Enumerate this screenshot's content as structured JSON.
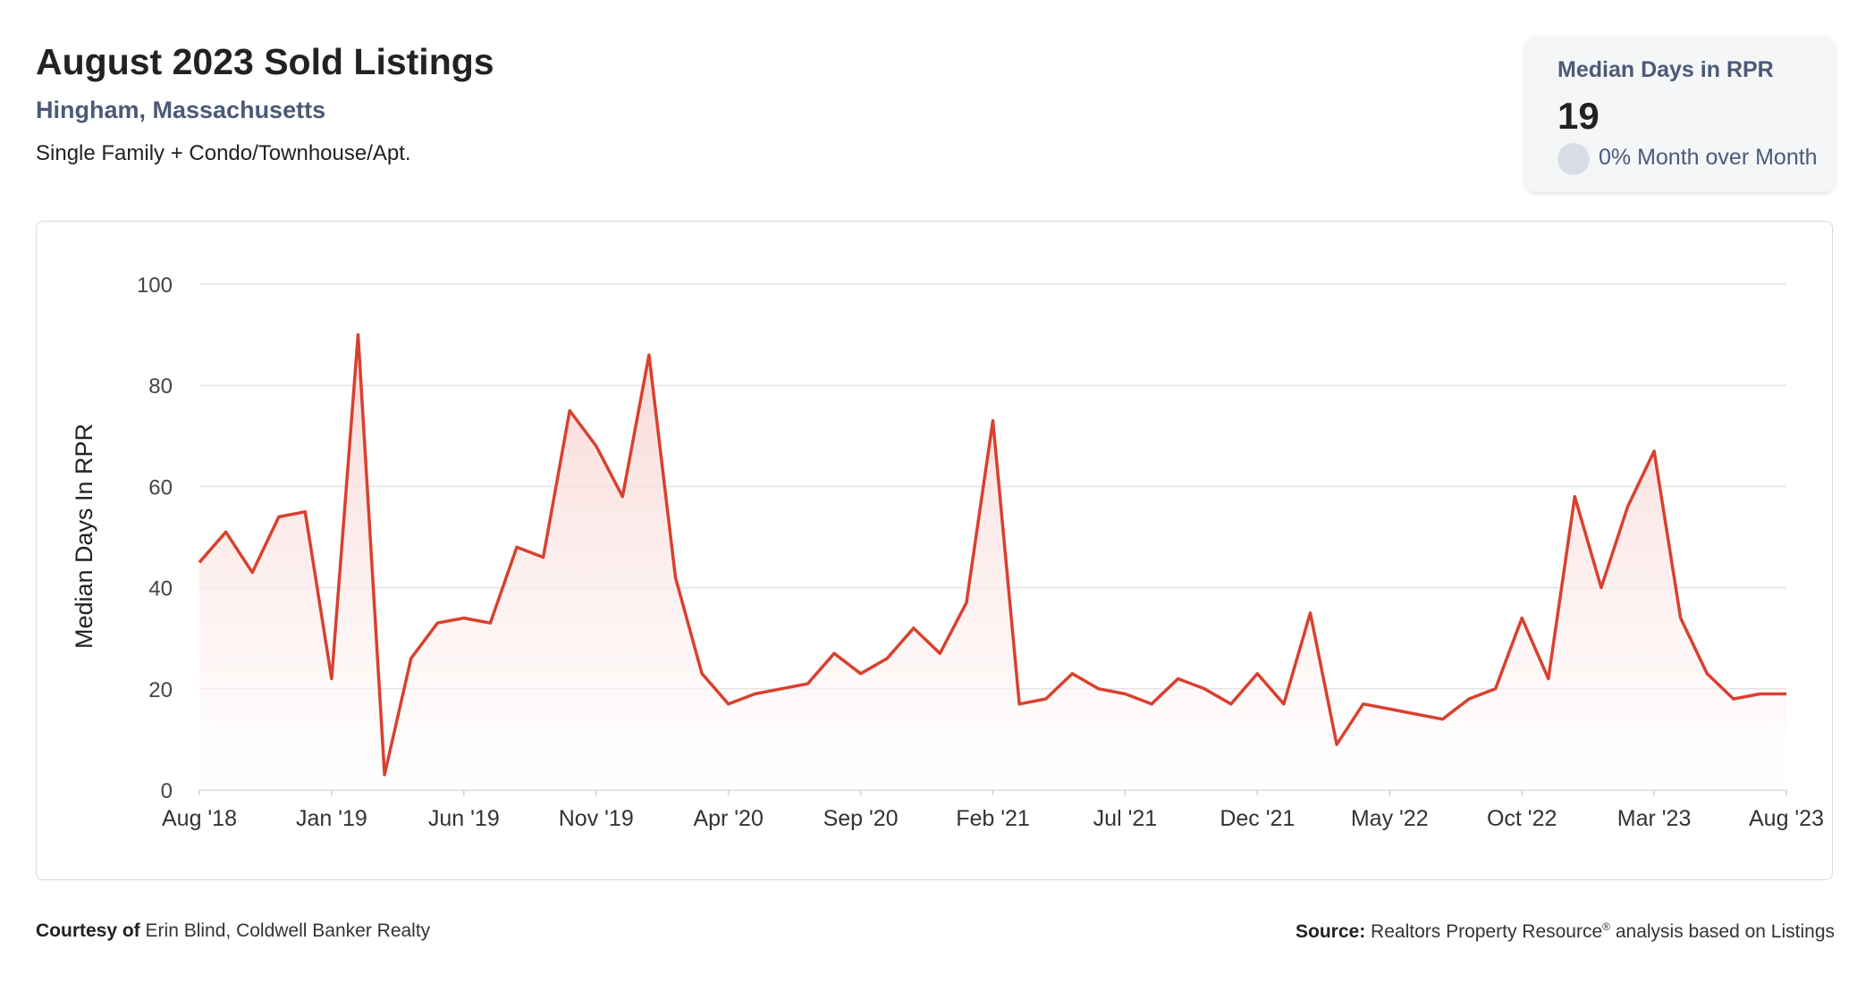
{
  "header": {
    "title": "August 2023 Sold Listings",
    "location": "Hingham, Massachusetts",
    "property_types": "Single Family + Condo/Townhouse/Apt."
  },
  "stat_card": {
    "label": "Median Days in RPR",
    "value": "19",
    "change": "0% Month over Month"
  },
  "footer": {
    "courtesy_label": "Courtesy of",
    "courtesy_name": "Erin Blind, Coldwell Banker Realty",
    "source_label": "Source:",
    "source_text_1": "Realtors Property Resource",
    "source_sup": "®",
    "source_text_2": "analysis based on Listings"
  },
  "colors": {
    "line": "#d9402f",
    "fill_top": "#f7d3d0",
    "grid": "#e3e3e3",
    "header_blue": "#4b5a78"
  },
  "chart_data": {
    "type": "area",
    "ylabel": "Median Days In RPR",
    "ylim": [
      0,
      100
    ],
    "yticks": [
      0,
      20,
      40,
      60,
      80,
      100
    ],
    "grid": true,
    "x_tick_labels": [
      "Aug '18",
      "Jan '19",
      "Jun '19",
      "Nov '19",
      "Apr '20",
      "Sep '20",
      "Feb '21",
      "Jul '21",
      "Dec '21",
      "May '22",
      "Oct '22",
      "Mar '23",
      "Aug '23"
    ],
    "x_tick_month_offsets": [
      0,
      5,
      10,
      15,
      20,
      25,
      30,
      35,
      40,
      45,
      50,
      55,
      60
    ],
    "series": [
      {
        "values": [
          45,
          51,
          43,
          54,
          55,
          22,
          90,
          3,
          26,
          33,
          34,
          33,
          48,
          46,
          75,
          68,
          58,
          86,
          42,
          23,
          17,
          19,
          20,
          21,
          27,
          23,
          26,
          32,
          27,
          37,
          73,
          17,
          18,
          23,
          20,
          19,
          17,
          22,
          20,
          17,
          23,
          17,
          35,
          9,
          17,
          16,
          15,
          14,
          18,
          20,
          34,
          22,
          58,
          40,
          56,
          67,
          34,
          23,
          18,
          19,
          19
        ]
      }
    ]
  }
}
